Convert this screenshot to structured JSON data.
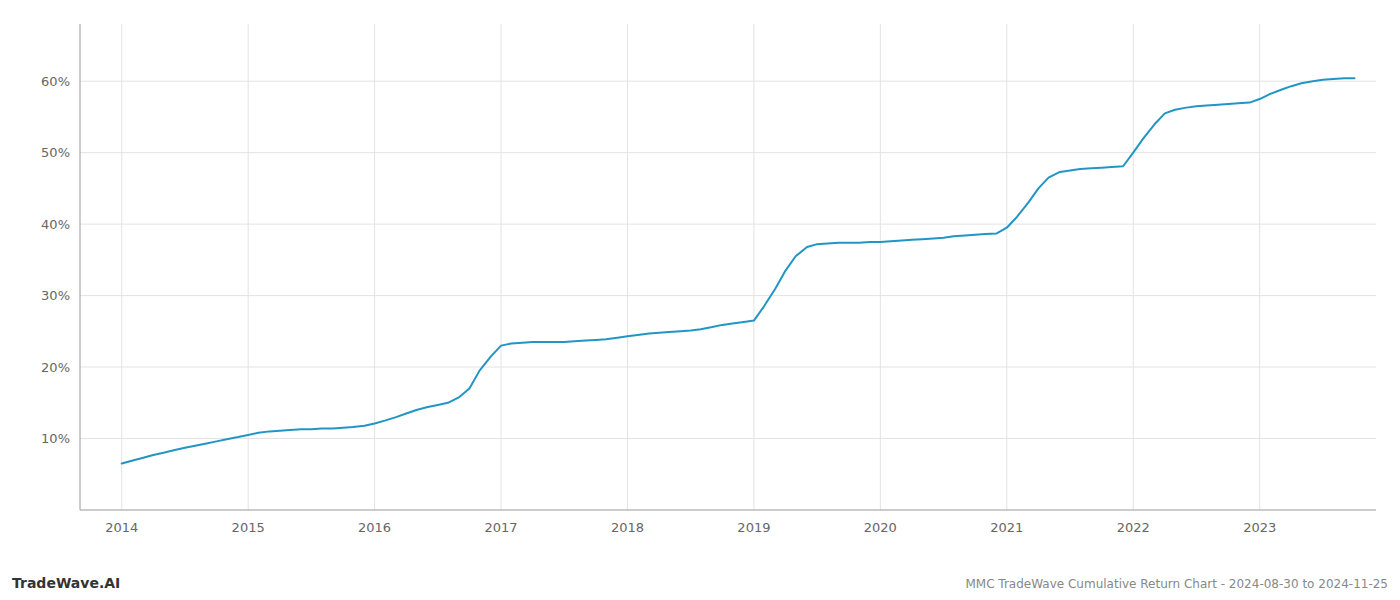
{
  "chart_data": {
    "type": "line",
    "annotations": [
      "TradeWave.AI",
      "MMC TradeWave Cumulative Return Chart - 2024-08-30 to 2024-11-25"
    ],
    "x": [
      2014.0,
      2014.08,
      2014.17,
      2014.25,
      2014.33,
      2014.42,
      2014.5,
      2014.58,
      2014.67,
      2014.75,
      2014.83,
      2014.92,
      2015.0,
      2015.08,
      2015.17,
      2015.25,
      2015.33,
      2015.42,
      2015.5,
      2015.58,
      2015.67,
      2015.75,
      2015.83,
      2015.92,
      2016.0,
      2016.08,
      2016.17,
      2016.25,
      2016.33,
      2016.42,
      2016.5,
      2016.58,
      2016.67,
      2016.75,
      2016.83,
      2016.92,
      2017.0,
      2017.08,
      2017.17,
      2017.25,
      2017.33,
      2017.42,
      2017.5,
      2017.58,
      2017.67,
      2017.75,
      2017.83,
      2017.92,
      2018.0,
      2018.08,
      2018.17,
      2018.25,
      2018.33,
      2018.42,
      2018.5,
      2018.58,
      2018.67,
      2018.75,
      2018.83,
      2018.92,
      2019.0,
      2019.08,
      2019.17,
      2019.25,
      2019.33,
      2019.42,
      2019.5,
      2019.58,
      2019.67,
      2019.75,
      2019.83,
      2019.92,
      2020.0,
      2020.08,
      2020.17,
      2020.25,
      2020.33,
      2020.42,
      2020.5,
      2020.58,
      2020.67,
      2020.75,
      2020.83,
      2020.92,
      2021.0,
      2021.08,
      2021.17,
      2021.25,
      2021.33,
      2021.42,
      2021.5,
      2021.58,
      2021.67,
      2021.75,
      2021.83,
      2021.92,
      2022.0,
      2022.08,
      2022.17,
      2022.25,
      2022.33,
      2022.42,
      2022.5,
      2022.58,
      2022.67,
      2022.75,
      2022.83,
      2022.92,
      2023.0,
      2023.08,
      2023.17,
      2023.25,
      2023.33,
      2023.42,
      2023.5,
      2023.58,
      2023.67,
      2023.75
    ],
    "values": [
      6.5,
      6.9,
      7.3,
      7.7,
      8.0,
      8.4,
      8.7,
      9.0,
      9.3,
      9.6,
      9.9,
      10.2,
      10.5,
      10.8,
      11.0,
      11.1,
      11.2,
      11.3,
      11.3,
      11.4,
      11.4,
      11.5,
      11.6,
      11.8,
      12.1,
      12.5,
      13.0,
      13.5,
      14.0,
      14.4,
      14.7,
      15.0,
      15.8,
      17.0,
      19.5,
      21.5,
      23.0,
      23.3,
      23.4,
      23.5,
      23.5,
      23.5,
      23.5,
      23.6,
      23.7,
      23.8,
      23.9,
      24.1,
      24.3,
      24.5,
      24.7,
      24.8,
      24.9,
      25.0,
      25.1,
      25.3,
      25.6,
      25.9,
      26.1,
      26.3,
      26.5,
      28.5,
      31.0,
      33.5,
      35.5,
      36.8,
      37.2,
      37.3,
      37.4,
      37.4,
      37.4,
      37.5,
      37.5,
      37.6,
      37.7,
      37.8,
      37.9,
      38.0,
      38.1,
      38.3,
      38.4,
      38.5,
      38.6,
      38.7,
      39.5,
      41.0,
      43.0,
      45.0,
      46.5,
      47.3,
      47.5,
      47.7,
      47.8,
      47.9,
      48.0,
      48.1,
      50.0,
      52.0,
      54.0,
      55.5,
      56.0,
      56.3,
      56.5,
      56.6,
      56.7,
      56.8,
      56.9,
      57.0,
      57.5,
      58.2,
      58.8,
      59.3,
      59.7,
      60.0,
      60.2,
      60.3,
      60.4,
      60.4
    ],
    "color": "#2196c4",
    "xlim": [
      2013.67,
      2023.92
    ],
    "xticks": [
      2014,
      2015,
      2016,
      2017,
      2018,
      2019,
      2020,
      2021,
      2022,
      2023
    ],
    "ylim": [
      0,
      68
    ],
    "yticks": [
      {
        "value": 10,
        "label": "10%"
      },
      {
        "value": 20,
        "label": "20%"
      },
      {
        "value": 30,
        "label": "30%"
      },
      {
        "value": 40,
        "label": "40%"
      },
      {
        "value": 50,
        "label": "50%"
      },
      {
        "value": 60,
        "label": "60%"
      }
    ],
    "grid": true
  }
}
